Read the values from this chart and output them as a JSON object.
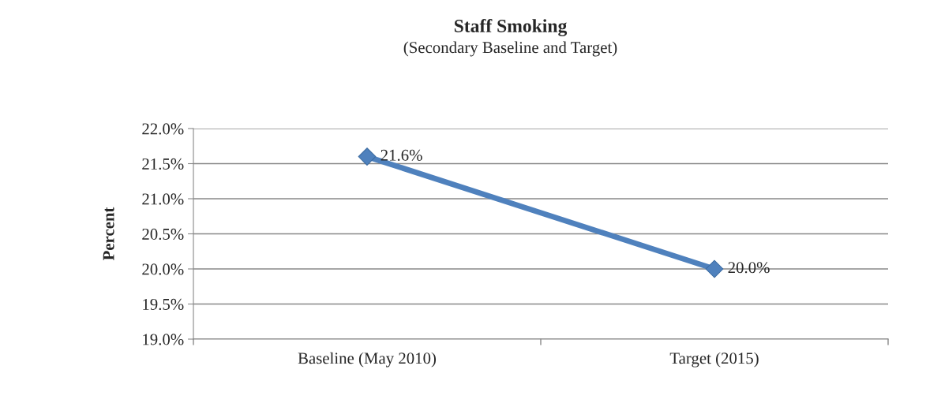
{
  "chart_data": {
    "type": "line",
    "title": "Staff Smoking",
    "subtitle": "(Secondary Baseline and Target)",
    "ylabel": "Percent",
    "categories": [
      "Baseline (May 2010)",
      "Target (2015)"
    ],
    "series": [
      {
        "color": "#4f81bd",
        "values": [
          21.6,
          20.0
        ],
        "value_labels": [
          "21.6%",
          "20.0%"
        ]
      }
    ],
    "ylim": [
      19.0,
      22.0
    ],
    "yticks": [
      {
        "value": 19.0,
        "label": "19.0%"
      },
      {
        "value": 19.5,
        "label": "19.5%"
      },
      {
        "value": 20.0,
        "label": "20.0%"
      },
      {
        "value": 20.5,
        "label": "20.5%"
      },
      {
        "value": 21.0,
        "label": "21.0%"
      },
      {
        "value": 21.5,
        "label": "21.5%"
      },
      {
        "value": 22.0,
        "label": "22.0%"
      }
    ],
    "grid": "y",
    "marker": "diamond",
    "legend": false
  }
}
